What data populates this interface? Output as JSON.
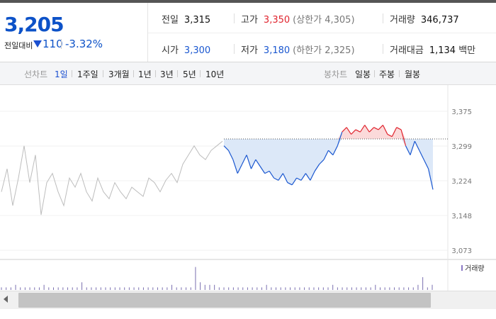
{
  "summary": {
    "current_price": "3,205",
    "change_label": "전일대비",
    "change_abs": "110",
    "change_pct": "-3.32%",
    "direction": "down"
  },
  "stats": {
    "prev_close_label": "전일",
    "prev_close": "3,315",
    "high_label": "고가",
    "high": "3,350",
    "upper_limit": "(상한가 4,305)",
    "volume_label": "거래량",
    "volume": "346,737",
    "open_label": "시가",
    "open": "3,300",
    "low_label": "저가",
    "low": "3,180",
    "lower_limit": "(하한가 2,325)",
    "value_label": "거래대금",
    "value": "1,134",
    "value_unit": "백만"
  },
  "tabs": {
    "line_label": "선차트",
    "line_periods": [
      "1일",
      "1주일",
      "3개월",
      "1년",
      "3년",
      "5년",
      "10년"
    ],
    "active_period": "1일",
    "candle_label": "봉차트",
    "candle_periods": [
      "일봉",
      "주봉",
      "월봉"
    ]
  },
  "colors": {
    "up": "#e0242e",
    "down": "#1a57d0",
    "prev_line": "#555555",
    "history_line": "#bdbdbd",
    "fill_up": "#fbdada",
    "fill_down": "#dce8f8"
  },
  "chart_data": {
    "type": "line",
    "y_ticks": [
      "3,375",
      "3,299",
      "3,224",
      "3,148",
      "3,073"
    ],
    "ylim": [
      3073,
      3375
    ],
    "reference": 3315,
    "history_series": [
      3200,
      3250,
      3170,
      3230,
      3300,
      3220,
      3280,
      3150,
      3220,
      3240,
      3200,
      3170,
      3230,
      3210,
      3240,
      3200,
      3180,
      3230,
      3200,
      3185,
      3220,
      3200,
      3185,
      3210,
      3200,
      3190,
      3230,
      3220,
      3200,
      3225,
      3240,
      3220,
      3260,
      3280,
      3300,
      3280,
      3270,
      3290,
      3300,
      3310
    ],
    "today_series": [
      3300,
      3290,
      3270,
      3240,
      3260,
      3280,
      3250,
      3270,
      3255,
      3240,
      3245,
      3230,
      3225,
      3240,
      3220,
      3215,
      3230,
      3225,
      3240,
      3225,
      3245,
      3260,
      3270,
      3290,
      3280,
      3300,
      3330,
      3340,
      3325,
      3335,
      3330,
      3345,
      3330,
      3340,
      3335,
      3345,
      3325,
      3320,
      3340,
      3335,
      3300,
      3280,
      3310,
      3290,
      3270,
      3250,
      3205
    ],
    "volume_legend": "거래량",
    "volume": [
      1,
      1,
      1,
      2,
      1,
      1,
      1,
      1,
      1,
      2,
      1,
      1,
      1,
      1,
      1,
      1,
      1,
      3,
      1,
      1,
      1,
      1,
      1,
      1,
      1,
      1,
      1,
      1,
      1,
      1,
      1,
      1,
      1,
      1,
      1,
      1,
      2,
      1,
      1,
      1,
      1,
      9,
      3,
      2,
      2,
      2,
      1,
      1,
      1,
      1,
      1,
      1,
      1,
      1,
      1,
      1,
      2,
      1,
      1,
      1,
      1,
      1,
      1,
      1,
      1,
      1,
      1,
      1,
      1,
      1,
      2,
      1,
      1,
      1,
      1,
      1,
      1,
      1,
      1,
      2,
      1,
      1,
      1,
      1,
      1,
      1,
      1,
      1,
      2,
      5,
      1,
      2
    ]
  }
}
